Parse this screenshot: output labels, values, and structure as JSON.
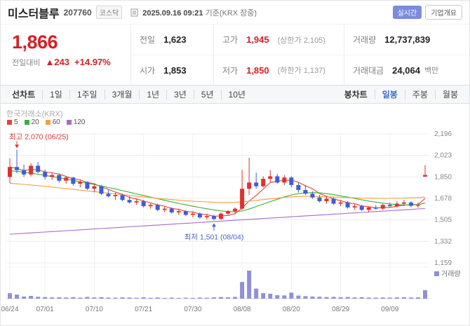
{
  "header": {
    "title": "미스터블루",
    "code": "207760",
    "market_badge": "코스닥",
    "timestamp": "2025.09.16 09:21",
    "timestamp_suffix": "기준(KRX 장중)",
    "realtime_badge": "실시간",
    "overview_badge": "기업개요"
  },
  "price_panel": {
    "current_price": "1,866",
    "change_label": "전일대비",
    "change_text": "▲243",
    "change_percent": "+14.97%",
    "cells": {
      "prev_label": "전일",
      "prev_value": "1,623",
      "high_label": "고가",
      "high_value": "1,945",
      "high_limit": "(상한가 2,105)",
      "volume_label": "거래량",
      "volume_value": "12,737,839",
      "open_label": "시가",
      "open_value": "1,853",
      "low_label": "저가",
      "low_value": "1,850",
      "low_limit": "(하한가 1,137)",
      "amount_label": "거래대금",
      "amount_value": "24,064",
      "amount_unit": "백만"
    }
  },
  "toolbar": {
    "line_chart_label": "선차트",
    "ranges": [
      "1일",
      "1주일",
      "3개월",
      "1년",
      "3년",
      "5년",
      "10년"
    ],
    "candle_chart_label": "봉차트",
    "periods": [
      "일봉",
      "주봉",
      "월봉"
    ],
    "selected_period": "일봉"
  },
  "chart_data": {
    "type": "candlestick",
    "watermark": "한국거래소(KRX)",
    "up_color": "#e1302e",
    "down_color": "#3c5fd6",
    "volume_color": "#9090d8",
    "grid_color": "#ebebeb",
    "volume_label": "거래량",
    "y_ticks": [
      2196,
      2023,
      1850,
      1678,
      1505,
      1332,
      1159
    ],
    "x_ticks": [
      "06/24",
      "07/01",
      "07/10",
      "07/21",
      "07/30",
      "08/08",
      "08/20",
      "08/29",
      "09/09"
    ],
    "x_tick_indices": [
      0,
      5,
      12,
      19,
      26,
      33,
      40,
      47,
      54
    ],
    "annotations": {
      "high": {
        "text": "최고 2,070 (06/25)",
        "index": 1,
        "value": 2070,
        "color": "#d93a36"
      },
      "low": {
        "text": "최저 1,501 (08/04)",
        "index": 29,
        "value": 1501,
        "color": "#4a5fd0"
      }
    },
    "legend": [
      {
        "label": "5",
        "color": "#e0433a"
      },
      {
        "label": "20",
        "color": "#3caf36"
      },
      {
        "label": "60",
        "color": "#f0a142"
      },
      {
        "label": "120",
        "color": "#a86bc9"
      }
    ],
    "moving_averages": [
      {
        "period": 5,
        "color": "#e0433a",
        "values": null
      },
      {
        "period": 20,
        "color": "#3caf36",
        "values": [
          1900,
          1895,
          1888,
          1880,
          1872,
          1863,
          1853,
          1843,
          1833,
          1822,
          1811,
          1800,
          1789,
          1777,
          1765,
          1753,
          1740,
          1727,
          1714,
          1701,
          1688,
          1675,
          1662,
          1650,
          1638,
          1626,
          1615,
          1604,
          1594,
          1585,
          1577,
          1572,
          1570,
          1576,
          1592,
          1612,
          1632,
          1652,
          1670,
          1690,
          1705,
          1716,
          1722,
          1724,
          1722,
          1716,
          1708,
          1698,
          1688,
          1677,
          1666,
          1656,
          1647,
          1639,
          1633,
          1628,
          1625,
          1624,
          1626,
          1640
        ]
      },
      {
        "period": 60,
        "color": "#f0a142",
        "values": [
          1800,
          1795,
          1790,
          1785,
          1780,
          1774,
          1768,
          1762,
          1756,
          1750,
          1744,
          1738,
          1732,
          1726,
          1720,
          1714,
          1708,
          1702,
          1696,
          1690,
          1684,
          1678,
          1673,
          1668,
          1663,
          1659,
          1655,
          1652,
          1649,
          1647,
          1645,
          1645,
          1646,
          1649,
          1655,
          1662,
          1668,
          1674,
          1680,
          1686,
          1690,
          1693,
          1694,
          1694,
          1692,
          1690,
          1688,
          1686,
          1684,
          1682,
          1680,
          1679,
          1678,
          1678,
          1678,
          1679,
          1680,
          1682,
          1684,
          1688
        ]
      },
      {
        "period": 120,
        "color": "#a86bc9",
        "values": [
          1390,
          1393,
          1397,
          1400,
          1404,
          1407,
          1411,
          1414,
          1418,
          1421,
          1425,
          1428,
          1432,
          1435,
          1439,
          1442,
          1446,
          1449,
          1453,
          1456,
          1460,
          1463,
          1467,
          1470,
          1474,
          1477,
          1481,
          1484,
          1488,
          1491,
          1495,
          1498,
          1502,
          1505,
          1509,
          1512,
          1516,
          1519,
          1523,
          1526,
          1530,
          1533,
          1537,
          1540,
          1544,
          1547,
          1551,
          1554,
          1558,
          1561,
          1565,
          1568,
          1572,
          1575,
          1579,
          1582,
          1586,
          1589,
          1593,
          1596
        ]
      }
    ],
    "candle_columns": [
      "date",
      "open",
      "high",
      "low",
      "close",
      "volume"
    ],
    "candles": [
      [
        "06/24",
        1850,
        2000,
        1800,
        1930,
        8200000
      ],
      [
        "06/25",
        1930,
        2070,
        1880,
        1905,
        6100000
      ],
      [
        "06/26",
        1905,
        1950,
        1850,
        1870,
        3200000
      ],
      [
        "06/27",
        1870,
        1960,
        1855,
        1940,
        4100000
      ],
      [
        "06/30",
        1940,
        1970,
        1880,
        1890,
        2800000
      ],
      [
        "07/01",
        1890,
        1910,
        1830,
        1850,
        2400000
      ],
      [
        "07/02",
        1850,
        1885,
        1825,
        1865,
        1900000
      ],
      [
        "07/03",
        1865,
        1875,
        1805,
        1820,
        2100000
      ],
      [
        "07/04",
        1820,
        1855,
        1795,
        1845,
        1700000
      ],
      [
        "07/07",
        1845,
        1850,
        1780,
        1795,
        2300000
      ],
      [
        "07/08",
        1795,
        1825,
        1765,
        1810,
        1500000
      ],
      [
        "07/09",
        1810,
        1815,
        1745,
        1755,
        2600000
      ],
      [
        "07/10",
        1755,
        1795,
        1725,
        1775,
        1800000
      ],
      [
        "07/11",
        1775,
        1785,
        1705,
        1715,
        2200000
      ],
      [
        "07/14",
        1715,
        1745,
        1685,
        1695,
        1600000
      ],
      [
        "07/15",
        1695,
        1725,
        1665,
        1705,
        1400000
      ],
      [
        "07/16",
        1705,
        1715,
        1655,
        1665,
        1900000
      ],
      [
        "07/17",
        1665,
        1695,
        1635,
        1645,
        1700000
      ],
      [
        "07/18",
        1645,
        1675,
        1625,
        1655,
        1300000
      ],
      [
        "07/21",
        1655,
        1665,
        1605,
        1615,
        2000000
      ],
      [
        "07/22",
        1615,
        1645,
        1595,
        1625,
        1200000
      ],
      [
        "07/23",
        1625,
        1635,
        1575,
        1585,
        1800000
      ],
      [
        "07/24",
        1585,
        1615,
        1565,
        1595,
        1100000
      ],
      [
        "07/25",
        1595,
        1605,
        1555,
        1565,
        1500000
      ],
      [
        "07/28",
        1565,
        1595,
        1545,
        1575,
        1000000
      ],
      [
        "07/29",
        1575,
        1585,
        1535,
        1545,
        1400000
      ],
      [
        "07/30",
        1545,
        1575,
        1525,
        1555,
        1200000
      ],
      [
        "07/31",
        1555,
        1565,
        1515,
        1525,
        1600000
      ],
      [
        "08/01",
        1525,
        1555,
        1508,
        1535,
        1300000
      ],
      [
        "08/04",
        1535,
        1545,
        1501,
        1512,
        1900000
      ],
      [
        "08/05",
        1512,
        1565,
        1506,
        1555,
        2400000
      ],
      [
        "08/06",
        1555,
        1585,
        1545,
        1575,
        2100000
      ],
      [
        "08/07",
        1575,
        1605,
        1555,
        1595,
        2600000
      ],
      [
        "08/08",
        1595,
        1905,
        1585,
        1755,
        25000000
      ],
      [
        "08/11",
        1755,
        2005,
        1705,
        1805,
        42000000
      ],
      [
        "08/12",
        1805,
        1885,
        1755,
        1775,
        15000000
      ],
      [
        "08/13",
        1775,
        1855,
        1765,
        1835,
        8200000
      ],
      [
        "08/14",
        1835,
        1905,
        1805,
        1855,
        7400000
      ],
      [
        "08/18",
        1855,
        1875,
        1795,
        1805,
        5200000
      ],
      [
        "08/19",
        1805,
        1865,
        1785,
        1845,
        4800000
      ],
      [
        "08/20",
        1845,
        1855,
        1765,
        1785,
        9100000
      ],
      [
        "08/21",
        1785,
        1805,
        1725,
        1745,
        4600000
      ],
      [
        "08/22",
        1745,
        1785,
        1705,
        1715,
        3800000
      ],
      [
        "08/25",
        1715,
        1735,
        1675,
        1685,
        3200000
      ],
      [
        "08/26",
        1685,
        1705,
        1645,
        1655,
        2900000
      ],
      [
        "08/27",
        1655,
        1695,
        1635,
        1675,
        2400000
      ],
      [
        "08/28",
        1675,
        1685,
        1625,
        1635,
        2700000
      ],
      [
        "08/29",
        1635,
        1665,
        1615,
        1645,
        2100000
      ],
      [
        "09/01",
        1645,
        1655,
        1595,
        1605,
        2500000
      ],
      [
        "09/02",
        1605,
        1635,
        1585,
        1615,
        1900000
      ],
      [
        "09/03",
        1615,
        1625,
        1575,
        1585,
        2200000
      ],
      [
        "09/04",
        1585,
        1615,
        1565,
        1605,
        1700000
      ],
      [
        "09/05",
        1605,
        1625,
        1585,
        1595,
        1500000
      ],
      [
        "09/08",
        1595,
        1635,
        1585,
        1625,
        1800000
      ],
      [
        "09/09",
        1625,
        1645,
        1605,
        1615,
        1600000
      ],
      [
        "09/10",
        1615,
        1655,
        1605,
        1635,
        1900000
      ],
      [
        "09/11",
        1635,
        1665,
        1615,
        1645,
        2100000
      ],
      [
        "09/12",
        1645,
        1655,
        1605,
        1618,
        1700000
      ],
      [
        "09/15",
        1618,
        1645,
        1602,
        1623,
        2000000
      ],
      [
        "09/16",
        1853,
        1945,
        1850,
        1866,
        12737839
      ]
    ]
  }
}
